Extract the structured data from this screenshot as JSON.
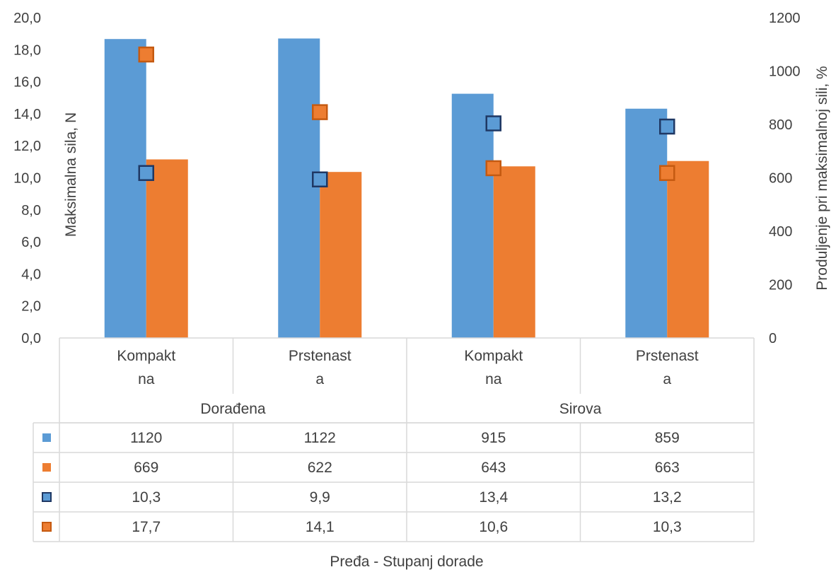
{
  "chart_data": {
    "type": "bar",
    "title": "",
    "xlabel": "Pređa - Stupanj dorade",
    "ylabel_left": "Maksimalna sila, N",
    "ylabel_right": "Produljenje pri maksimalnoj sili, %",
    "ylim_left": [
      0,
      20
    ],
    "ylim_right": [
      0,
      1200
    ],
    "yticks_left": [
      "0,0",
      "2,0",
      "4,0",
      "6,0",
      "8,0",
      "10,0",
      "12,0",
      "14,0",
      "16,0",
      "18,0",
      "20,0"
    ],
    "yticks_right": [
      "0",
      "200",
      "400",
      "600",
      "800",
      "1000",
      "1200"
    ],
    "groups": [
      {
        "label": "Dorađena",
        "categories": [
          {
            "line1": "Kompakt",
            "line2": "na"
          },
          {
            "line1": "Prstenast",
            "line2": "a"
          }
        ]
      },
      {
        "label": "Sirova",
        "categories": [
          {
            "line1": "Kompakt",
            "line2": "na"
          },
          {
            "line1": "Prstenast",
            "line2": "a"
          }
        ]
      }
    ],
    "series": [
      {
        "marker": "bar",
        "axis": "right",
        "color": "#5b9bd5",
        "values": [
          1120,
          1122,
          915,
          859
        ],
        "labels": [
          "1120",
          "1122",
          "915",
          "859"
        ]
      },
      {
        "marker": "bar",
        "axis": "right",
        "color": "#ed7d31",
        "values": [
          669,
          622,
          643,
          663
        ],
        "labels": [
          "669",
          "622",
          "643",
          "663"
        ]
      },
      {
        "marker": "square",
        "axis": "left",
        "color": "#5b9bd5",
        "edge": "#1f3864",
        "values": [
          10.3,
          9.9,
          13.4,
          13.2
        ],
        "labels": [
          "10,3",
          "9,9",
          "13,4",
          "13,2"
        ]
      },
      {
        "marker": "square",
        "axis": "left",
        "color": "#ed7d31",
        "edge": "#c55a11",
        "values": [
          17.7,
          14.1,
          10.6,
          10.3
        ],
        "labels": [
          "17,7",
          "14,1",
          "10,6",
          "10,3"
        ]
      }
    ],
    "grid": false,
    "legend": "data-table"
  }
}
